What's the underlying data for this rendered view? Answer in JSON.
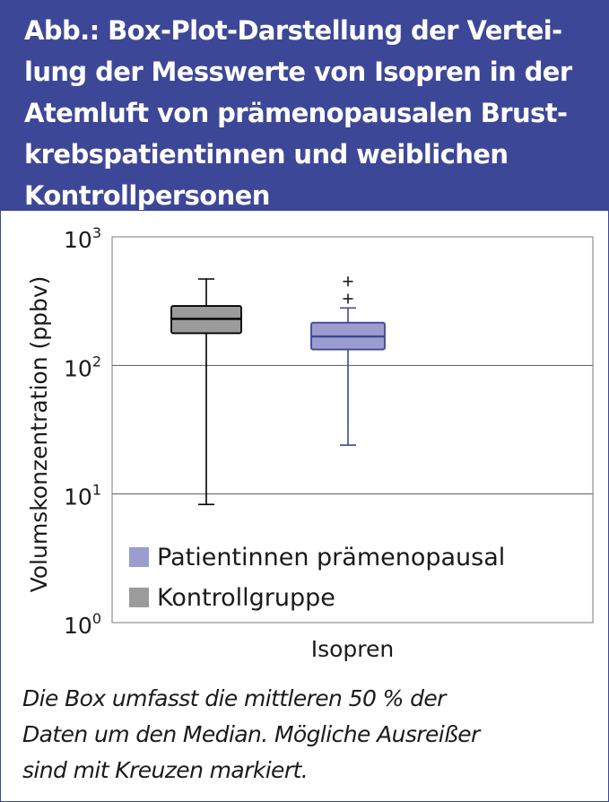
{
  "title": "Abb.: Box-Plot-Darstellung der Vertei-\nlung der Messwerte von Isopren in der\nAtemluft von prämenopausalen Brust-\nkrebspatientinnen und weiblichen\nKontrollpersonen",
  "caption": "Die Box umfasst die mittleren 50 % der\nDaten um den Median. Mögliche Ausreißer\nsind mit Kreuzen markiert.",
  "colors": {
    "header_bg": "#3d4797",
    "patient_fill": "#9b9dcf",
    "patient_stroke": "#3d4797",
    "control_fill": "#9b9b9b",
    "control_stroke": "#000000"
  },
  "chart_data": {
    "type": "boxplot",
    "title": "",
    "xlabel": "Isopren",
    "ylabel": "Volumskonzentration (ppbv)",
    "yscale": "log",
    "ylim": [
      1,
      1000
    ],
    "y_ticks": [
      {
        "value": 1,
        "base": "10",
        "exp": "0"
      },
      {
        "value": 10,
        "base": "10",
        "exp": "1"
      },
      {
        "value": 100,
        "base": "10",
        "exp": "2"
      },
      {
        "value": 1000,
        "base": "10",
        "exp": "3"
      }
    ],
    "grid": "horizontal major",
    "legend_position": "bottom-left",
    "series": [
      {
        "name": "Kontrollgruppe",
        "color": "#9b9b9b",
        "whisker_low": 8.3,
        "q1": 178,
        "median": 230,
        "q3": 290,
        "whisker_high": 470,
        "outliers": []
      },
      {
        "name": "Patientinnen prämenopausal",
        "color": "#9b9dcf",
        "whisker_low": 24,
        "q1": 133,
        "median": 168,
        "q3": 215,
        "whisker_high": 280,
        "outliers": [
          330,
          450
        ]
      }
    ],
    "legend": [
      {
        "name": "Patientinnen prämenopausal",
        "color": "#9b9dcf"
      },
      {
        "name": "Kontrollgruppe",
        "color": "#9b9b9b"
      }
    ]
  }
}
